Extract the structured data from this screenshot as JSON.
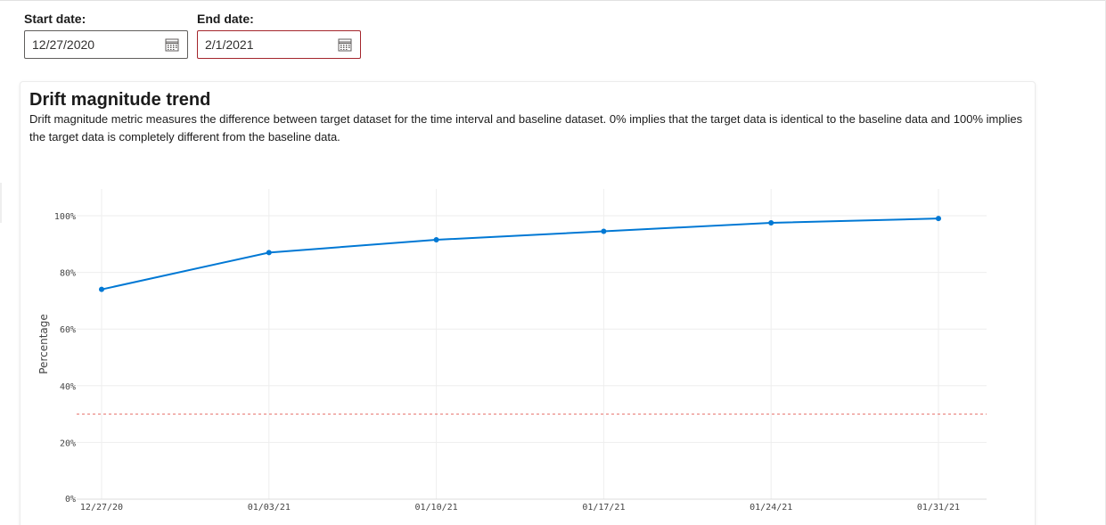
{
  "filters": {
    "start_date": {
      "label": "Start date:",
      "value": "12/27/2020",
      "icon": "calendar-icon"
    },
    "end_date": {
      "label": "End date:",
      "value": "2/1/2021",
      "icon": "calendar-icon",
      "border_color": "#a4262c"
    }
  },
  "card": {
    "title": "Drift magnitude trend",
    "description": "Drift magnitude metric measures the difference between target dataset for the time interval and baseline dataset. 0% implies that the target data is identical to the baseline data and 100% implies the target data is completely different from the baseline data."
  },
  "chart_data": {
    "type": "line",
    "title": "",
    "xlabel": "",
    "ylabel": "Percentage",
    "x": [
      "12/27/20",
      "01/03/21",
      "01/10/21",
      "01/17/21",
      "01/24/21",
      "01/31/21"
    ],
    "series": [
      {
        "values": [
          74,
          87,
          91.5,
          94.5,
          97.5,
          99
        ],
        "color": "#0078d4"
      }
    ],
    "threshold": {
      "value": 30,
      "color": "#e8726b",
      "style": "dashed"
    },
    "yticks": [
      "0%",
      "20%",
      "40%",
      "60%",
      "80%",
      "100%"
    ],
    "ytick_values": [
      0,
      20,
      40,
      60,
      80,
      100
    ],
    "ylim": [
      0,
      110
    ],
    "grid": true
  }
}
